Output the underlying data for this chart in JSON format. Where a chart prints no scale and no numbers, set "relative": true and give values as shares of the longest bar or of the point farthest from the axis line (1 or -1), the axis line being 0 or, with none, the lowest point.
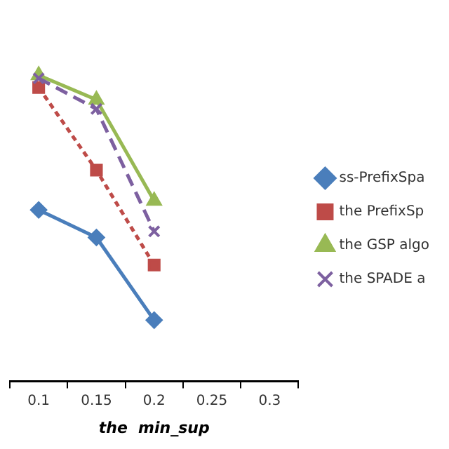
{
  "chart_data": {
    "type": "line",
    "relative": true,
    "xlabel": "the  min_sup",
    "categories": [
      "0.1",
      "0.15",
      "0.2",
      "0.25",
      "0.3"
    ],
    "legend": "right",
    "grid": false,
    "tick_labels": "x",
    "series": [
      {
        "name": "ss-PrefixSpa",
        "color": "#4a7ebb",
        "marker": "diamond",
        "line_style": "solid",
        "values": [
          0.56,
          0.47,
          0.2,
          null,
          null
        ]
      },
      {
        "name": "the PrefixSp",
        "color": "#be4b48",
        "marker": "square",
        "line_style": "dotted",
        "values": [
          0.96,
          0.69,
          0.38,
          null,
          null
        ]
      },
      {
        "name": "the GSP algo",
        "color": "#98b954",
        "marker": "triangle",
        "line_style": "solid",
        "values": [
          1,
          0.92,
          0.59,
          null,
          null
        ]
      },
      {
        "name": "the SPADE a",
        "color": "#7d60a0",
        "marker": "cross",
        "line_style": "dashed",
        "values": [
          0.99,
          0.89,
          0.49,
          null,
          null
        ]
      }
    ]
  }
}
